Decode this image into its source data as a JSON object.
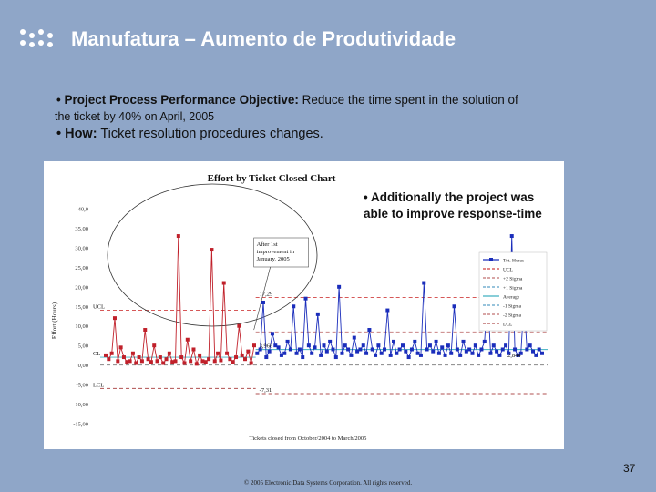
{
  "slide": {
    "title": "Manufatura – Aumento de Produtividade",
    "bullet1_lead": "• Project Process Performance Objective:",
    "bullet1_text": "Reduce the time spent in the solution of",
    "bullet1_cont": "the ticket by 40% on April, 2005",
    "bullet2_lead": "• How:",
    "bullet2_text": "Ticket resolution procedures changes.",
    "callout": "• Additionally the project was able to improve response-time",
    "page_number": "37",
    "footer": "© 2005 Electronic Data Systems Corporation. All rights reserved."
  },
  "chart_data": {
    "type": "line",
    "title": "Effort by Ticket Closed Chart",
    "ylabel": "Effort (Hours)",
    "xlabel": "Tickets closed from October/2004 to March/2005",
    "ylim": [
      -15,
      40
    ],
    "y_ticks": [
      "40,0",
      "35,00",
      "30,00",
      "25,00",
      "20,00",
      "15,00",
      "10,00",
      "5,00",
      "0,00",
      "-5,00",
      "-10,00",
      "-15,00"
    ],
    "grid": false,
    "legend_position": "right",
    "legend": [
      "Tot. Horas",
      "UCL",
      "+2 Sigma",
      "+1 Sigma",
      "Average",
      "-1 Sigma",
      "-2 Sigma",
      "LCL"
    ],
    "colors": {
      "before": "#c0202a",
      "after": "#1a2dbb",
      "ucl": "#d04040",
      "sigma2": "#c07070",
      "sigma1": "#5aa0c8",
      "average": "#40b0c0",
      "lcl": "#b05050"
    },
    "annotations": {
      "after_list": "After 1st improvement in January, 2005",
      "ucl_before_label": "UCL",
      "ucl_after_value": "17,29",
      "avg_before_label": "CL",
      "avg_after_value": "3,966",
      "end_value": "2,844",
      "lcl_before_label": "LCL",
      "lcl_after_value": "-7,31"
    },
    "reference_lines": {
      "before": {
        "ucl": 14.0,
        "avg": 2.0,
        "lcl": -6.0
      },
      "after": {
        "ucl": 17.29,
        "avg": 3.966,
        "lcl": -7.31
      }
    },
    "phase_change_index": 50,
    "series": [
      {
        "phase": "before",
        "values": [
          2.5,
          1.5,
          3,
          12,
          1,
          4.5,
          2,
          0.8,
          1,
          3,
          0.5,
          2,
          1,
          9,
          1.5,
          0.8,
          5,
          1,
          2,
          0.5,
          1.5,
          3,
          0.8,
          1,
          33,
          2,
          0.5,
          6.5,
          1,
          4,
          0.3,
          2.5,
          1,
          0.8,
          1.5,
          29.5,
          1,
          3,
          1.2,
          21,
          3,
          1.5,
          0.8,
          2,
          10,
          2.5,
          1.5,
          3.5,
          0.5,
          5
        ]
      },
      {
        "phase": "after",
        "values": [
          3,
          4,
          16,
          2,
          3.5,
          8,
          5,
          4.5,
          2.5,
          3,
          6,
          4,
          15,
          3,
          4,
          2,
          17,
          5,
          3,
          4.5,
          13,
          2.5,
          5,
          3.5,
          6,
          4,
          2,
          20,
          3,
          5,
          4,
          2.5,
          7,
          3.5,
          4,
          5,
          3,
          9,
          4,
          2.5,
          5,
          3,
          4,
          14,
          2.5,
          6,
          3,
          4,
          5,
          3.5,
          2,
          4,
          6,
          3,
          2.5,
          21,
          4,
          5,
          3.5,
          6,
          3,
          4.5,
          2.5,
          5,
          3,
          15,
          4,
          2.5,
          6,
          3.5,
          4,
          3,
          5,
          2.5,
          4,
          6,
          18,
          3,
          5,
          3.5,
          2.5,
          4,
          5,
          3,
          33,
          4,
          2.5,
          3,
          16,
          4,
          5,
          3.5,
          2.5,
          4,
          3
        ]
      }
    ]
  }
}
